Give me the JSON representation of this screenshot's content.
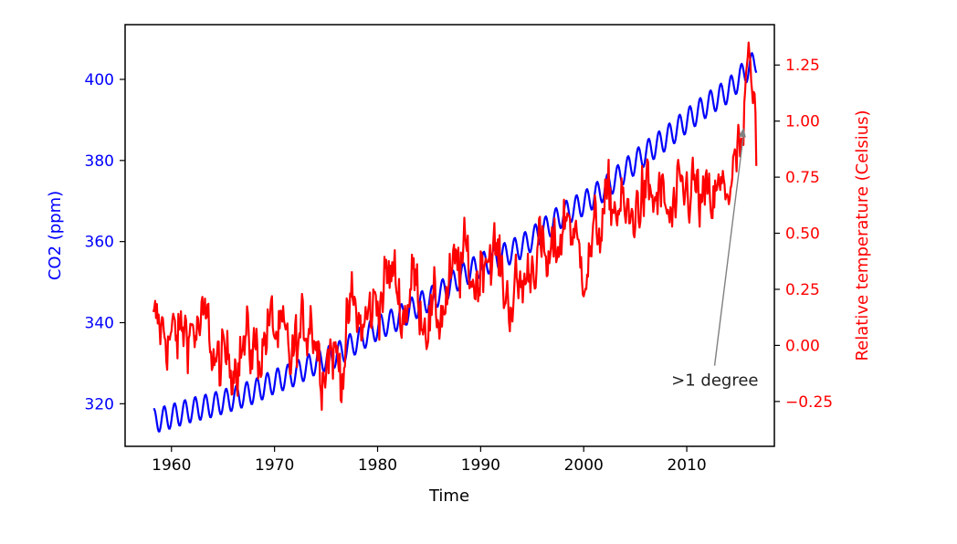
{
  "chart_data": {
    "type": "line",
    "xlabel": "Time",
    "xlim": [
      1955.5,
      2018.5
    ],
    "x_ticks": [
      "1960",
      "1970",
      "1980",
      "1990",
      "2000",
      "2010"
    ],
    "left_axis": {
      "label": "CO2 (ppm)",
      "color": "#0000ff",
      "ylim": [
        309.5,
        413.5
      ],
      "ticks": [
        "320",
        "340",
        "360",
        "380",
        "400"
      ]
    },
    "right_axis": {
      "label": "Relative temperature (Celsius)",
      "color": "#ff0000",
      "ylim": [
        -0.45,
        1.43
      ],
      "ticks": [
        "−0.25",
        "0.00",
        "0.25",
        "0.50",
        "0.75",
        "1.00",
        "1.25"
      ]
    },
    "series": [
      {
        "axis": "left",
        "color": "#0000ff",
        "x_start": 1958.25,
        "x_end": 2016.75,
        "points": [
          [
            1958.25,
            315.7
          ],
          [
            1960,
            316.9
          ],
          [
            1962,
            318.5
          ],
          [
            1964,
            319.7
          ],
          [
            1966,
            321.3
          ],
          [
            1968,
            323.0
          ],
          [
            1970,
            325.5
          ],
          [
            1972,
            327.4
          ],
          [
            1974,
            330.2
          ],
          [
            1976,
            332.0
          ],
          [
            1978,
            335.4
          ],
          [
            1980,
            338.7
          ],
          [
            1982,
            341.1
          ],
          [
            1984,
            344.4
          ],
          [
            1986,
            347.1
          ],
          [
            1988,
            351.3
          ],
          [
            1990,
            354.2
          ],
          [
            1992,
            356.3
          ],
          [
            1994,
            358.8
          ],
          [
            1996,
            362.6
          ],
          [
            1998,
            366.7
          ],
          [
            2000,
            369.4
          ],
          [
            2002,
            373.0
          ],
          [
            2004,
            377.4
          ],
          [
            2006,
            381.8
          ],
          [
            2008,
            385.5
          ],
          [
            2010,
            389.8
          ],
          [
            2012,
            393.8
          ],
          [
            2014,
            397.1
          ],
          [
            2016,
            402.8
          ],
          [
            2016.75,
            404.5
          ]
        ],
        "seasonal_amplitude": 3.0
      },
      {
        "axis": "right",
        "color": "#ff0000",
        "x_start": 1958.25,
        "x_end": 2016.75,
        "annual_means": [
          [
            1958,
            0.08
          ],
          [
            1959,
            0.06
          ],
          [
            1960,
            0.02
          ],
          [
            1961,
            0.09
          ],
          [
            1962,
            0.06
          ],
          [
            1963,
            0.08
          ],
          [
            1964,
            -0.11
          ],
          [
            1965,
            -0.06
          ],
          [
            1966,
            -0.02
          ],
          [
            1967,
            0.0
          ],
          [
            1968,
            -0.03
          ],
          [
            1969,
            0.09
          ],
          [
            1970,
            0.04
          ],
          [
            1971,
            -0.07
          ],
          [
            1972,
            0.02
          ],
          [
            1973,
            0.16
          ],
          [
            1974,
            -0.07
          ],
          [
            1975,
            -0.01
          ],
          [
            1976,
            -0.1
          ],
          [
            1977,
            0.18
          ],
          [
            1978,
            0.07
          ],
          [
            1979,
            0.16
          ],
          [
            1980,
            0.26
          ],
          [
            1981,
            0.32
          ],
          [
            1982,
            0.14
          ],
          [
            1983,
            0.31
          ],
          [
            1984,
            0.15
          ],
          [
            1985,
            0.12
          ],
          [
            1986,
            0.18
          ],
          [
            1987,
            0.32
          ],
          [
            1988,
            0.39
          ],
          [
            1989,
            0.27
          ],
          [
            1990,
            0.45
          ],
          [
            1991,
            0.4
          ],
          [
            1992,
            0.22
          ],
          [
            1993,
            0.23
          ],
          [
            1994,
            0.31
          ],
          [
            1995,
            0.45
          ],
          [
            1996,
            0.33
          ],
          [
            1997,
            0.46
          ],
          [
            1998,
            0.61
          ],
          [
            1999,
            0.38
          ],
          [
            2000,
            0.39
          ],
          [
            2001,
            0.54
          ],
          [
            2002,
            0.63
          ],
          [
            2003,
            0.62
          ],
          [
            2004,
            0.53
          ],
          [
            2005,
            0.68
          ],
          [
            2006,
            0.64
          ],
          [
            2007,
            0.66
          ],
          [
            2008,
            0.54
          ],
          [
            2009,
            0.65
          ],
          [
            2010,
            0.72
          ],
          [
            2011,
            0.61
          ],
          [
            2012,
            0.64
          ],
          [
            2013,
            0.68
          ],
          [
            2014,
            0.75
          ],
          [
            2015,
            0.9
          ],
          [
            2016,
            1.01
          ]
        ],
        "peak": [
          2016.0,
          1.35
        ],
        "final_value": [
          2016.75,
          0.8
        ]
      }
    ],
    "annotation": {
      "text": ">1 degree",
      "point": [
        2015.5,
        0.97
      ],
      "text_position": [
        2008.5,
        -0.18
      ],
      "arrow_color": "#808080"
    }
  }
}
